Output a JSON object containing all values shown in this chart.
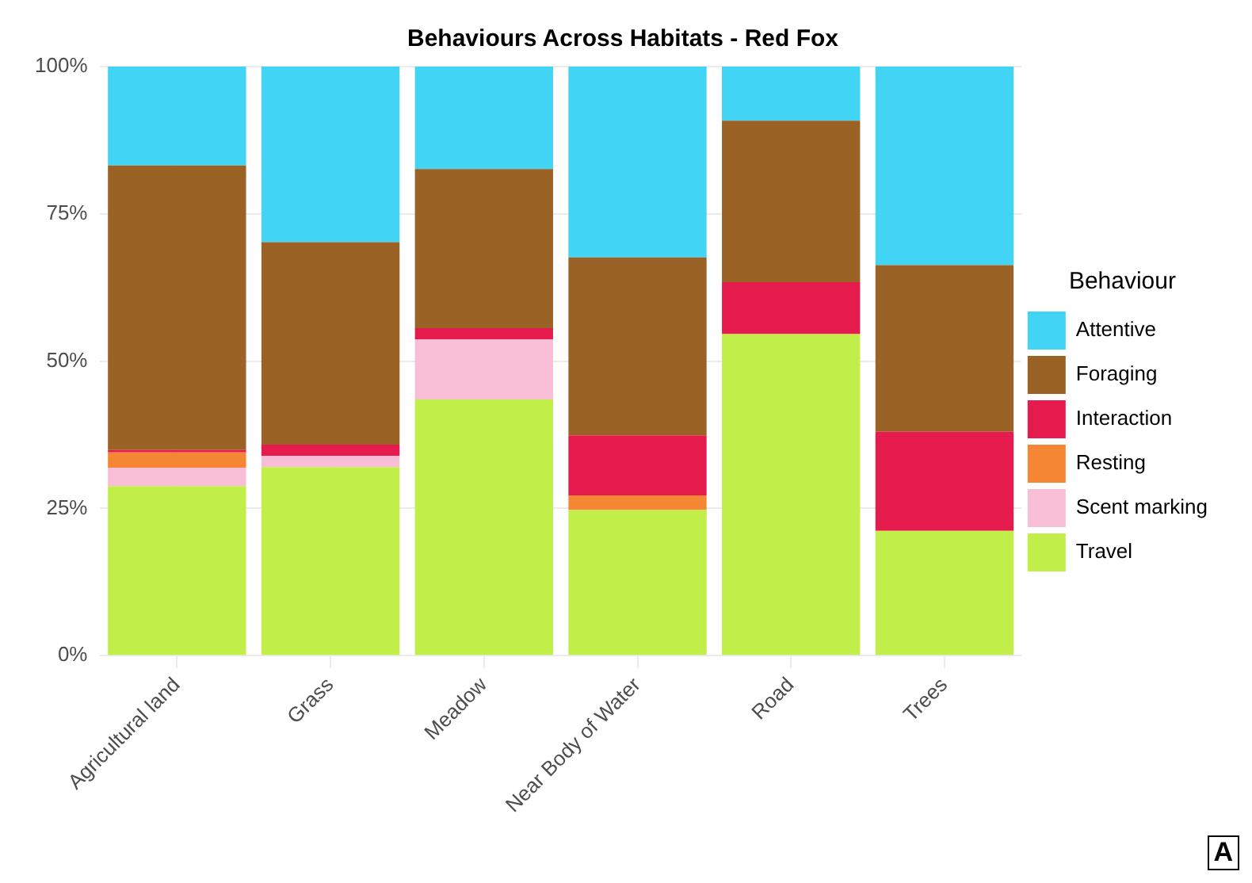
{
  "chart_data": {
    "type": "bar",
    "title": "Behaviours Across Habitats - Red Fox",
    "legend_title": "Behaviour",
    "categories": [
      "Agricultural land",
      "Grass",
      "Meadow",
      "Near Body of Water",
      "Road",
      "Trees"
    ],
    "stacked": true,
    "series": [
      {
        "name": "Travel",
        "color": "#c1ee48",
        "values": [
          28.8,
          32.0,
          43.5,
          24.7,
          54.6,
          21.2
        ]
      },
      {
        "name": "Scent marking",
        "color": "#f8bed5",
        "values": [
          3.1,
          1.9,
          10.2,
          0,
          0,
          0
        ]
      },
      {
        "name": "Resting",
        "color": "#f58634",
        "values": [
          2.6,
          0,
          0,
          2.5,
          0,
          0
        ]
      },
      {
        "name": "Interaction",
        "color": "#e61b4d",
        "values": [
          0.4,
          1.9,
          1.9,
          10.2,
          8.8,
          16.8
        ]
      },
      {
        "name": "Foraging",
        "color": "#9a6225",
        "values": [
          48.3,
          34.4,
          27.0,
          30.2,
          27.4,
          28.3
        ]
      },
      {
        "name": "Attentive",
        "color": "#41d4f5",
        "values": [
          16.8,
          29.8,
          17.4,
          32.4,
          9.2,
          33.7
        ]
      }
    ],
    "ylim": [
      0,
      100
    ],
    "yticks": [
      {
        "value": 0,
        "label": "0%"
      },
      {
        "value": 25,
        "label": "25%"
      },
      {
        "value": 50,
        "label": "50%"
      },
      {
        "value": 75,
        "label": "75%"
      },
      {
        "value": 100,
        "label": "100%"
      }
    ],
    "grid": true,
    "legend": "right",
    "annotations": [
      "A"
    ]
  }
}
